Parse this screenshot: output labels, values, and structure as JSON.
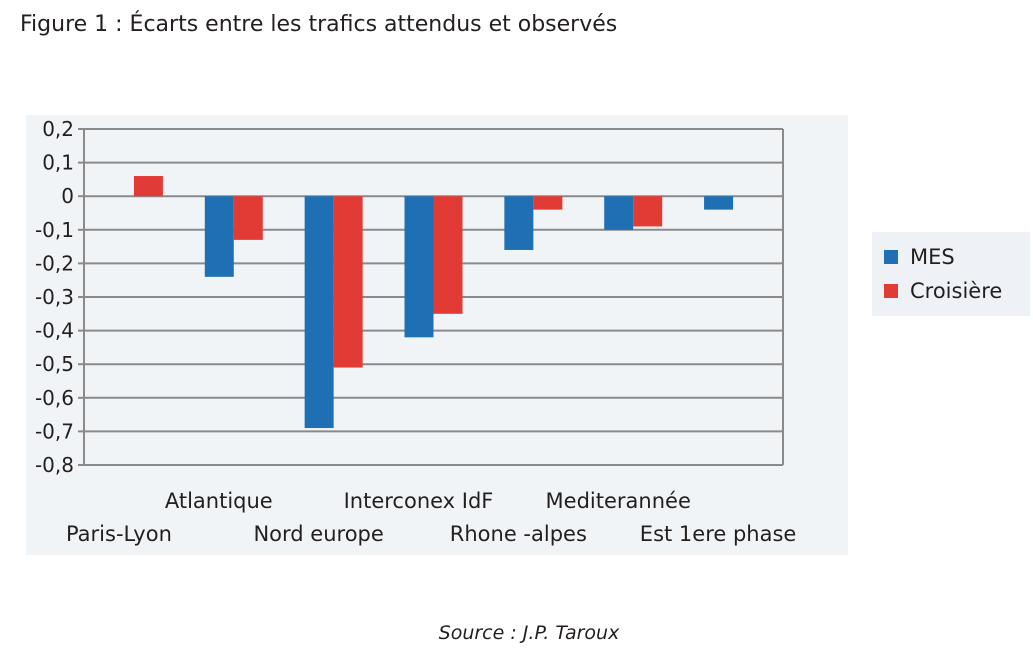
{
  "figure": {
    "title": "Figure 1 : Écarts entre les trafics attendus et observés",
    "source": "Source : J.P. Taroux"
  },
  "colors": {
    "mes": "#1f6fb5",
    "croisiere": "#e23a35",
    "grid": "#8a8a8a",
    "background": "#f1f4f7"
  },
  "chart_data": {
    "type": "bar",
    "categories": [
      "Paris-Lyon",
      "Atlantique",
      "Nord europe",
      "Interconex IdF",
      "Rhone -alpes",
      "Mediterannée",
      "Est 1ere phase"
    ],
    "series": [
      {
        "name": "MES",
        "values": [
          null,
          -0.24,
          -0.69,
          -0.42,
          -0.16,
          -0.1,
          -0.04
        ]
      },
      {
        "name": "Croisière",
        "values": [
          0.06,
          -0.13,
          -0.51,
          -0.35,
          -0.04,
          -0.09,
          null
        ]
      }
    ],
    "ylim": [
      -0.8,
      0.2
    ],
    "yticks": [
      "0,2",
      "0,1",
      "0",
      "-0,1",
      "-0,2",
      "-0,3",
      "-0,4",
      "-0,5",
      "-0,6",
      "-0,7",
      "-0,8"
    ],
    "legend_position": "right",
    "grid": true
  }
}
